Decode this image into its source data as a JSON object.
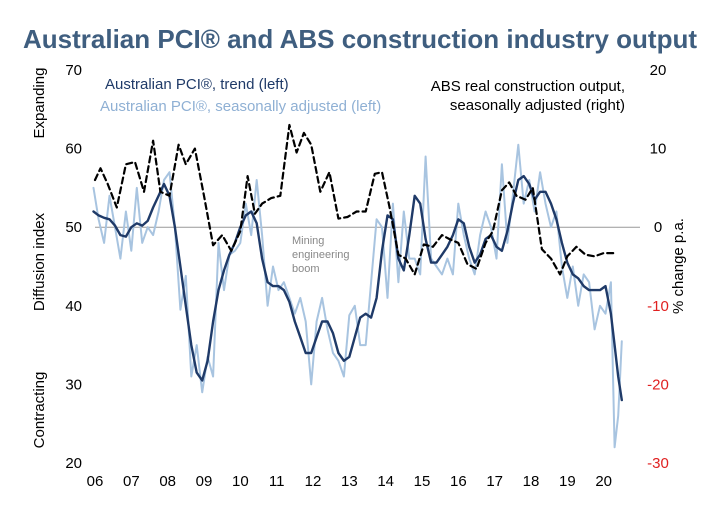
{
  "chart_data": {
    "type": "line",
    "title": "Australian PCI® and ABS construction industry output",
    "ylabel_left": "Diffusion index",
    "ylabel_right": "% change p.a.",
    "expanding_label": "Expanding",
    "contracting_label": "Contracting",
    "annotation": [
      "Mining",
      "engineering",
      "boom"
    ],
    "ylim_left": [
      20,
      70
    ],
    "ylim_right": [
      -30,
      20
    ],
    "yticks_left": [
      20,
      30,
      40,
      50,
      60,
      70
    ],
    "yticks_right": [
      -30,
      -20,
      -10,
      0,
      10,
      20
    ],
    "xlim": [
      2006,
      2021
    ],
    "xticks": [
      {
        "pos": 2006,
        "label": "06"
      },
      {
        "pos": 2007,
        "label": "07"
      },
      {
        "pos": 2008,
        "label": "08"
      },
      {
        "pos": 2009,
        "label": "09"
      },
      {
        "pos": 2010,
        "label": "10"
      },
      {
        "pos": 2011,
        "label": "11"
      },
      {
        "pos": 2012,
        "label": "12"
      },
      {
        "pos": 2013,
        "label": "13"
      },
      {
        "pos": 2014,
        "label": "14"
      },
      {
        "pos": 2015,
        "label": "15"
      },
      {
        "pos": 2016,
        "label": "16"
      },
      {
        "pos": 2017,
        "label": "17"
      },
      {
        "pos": 2018,
        "label": "18"
      },
      {
        "pos": 2019,
        "label": "19"
      },
      {
        "pos": 2020,
        "label": "20"
      }
    ],
    "series": [
      {
        "name": "Australian PCI®, seasonally adjusted (left)",
        "axis": "left",
        "color": "#A8C4E0",
        "style": "solid",
        "x": [
          2005.96,
          2006.1,
          2006.25,
          2006.4,
          2006.55,
          2006.7,
          2006.85,
          2007.0,
          2007.15,
          2007.3,
          2007.45,
          2007.6,
          2007.75,
          2007.9,
          2008.05,
          2008.2,
          2008.35,
          2008.5,
          2008.65,
          2008.8,
          2008.95,
          2009.1,
          2009.25,
          2009.4,
          2009.55,
          2009.7,
          2009.85,
          2010.0,
          2010.15,
          2010.3,
          2010.45,
          2010.6,
          2010.75,
          2010.9,
          2011.05,
          2011.2,
          2011.35,
          2011.5,
          2011.65,
          2011.8,
          2011.95,
          2012.1,
          2012.25,
          2012.4,
          2012.55,
          2012.7,
          2012.85,
          2013.0,
          2013.15,
          2013.3,
          2013.45,
          2013.6,
          2013.75,
          2013.9,
          2014.05,
          2014.2,
          2014.35,
          2014.5,
          2014.65,
          2014.8,
          2014.95,
          2015.1,
          2015.25,
          2015.4,
          2015.55,
          2015.7,
          2015.85,
          2016.0,
          2016.15,
          2016.3,
          2016.45,
          2016.6,
          2016.75,
          2016.9,
          2017.05,
          2017.2,
          2017.35,
          2017.5,
          2017.65,
          2017.8,
          2017.95,
          2018.1,
          2018.25,
          2018.4,
          2018.55,
          2018.7,
          2018.85,
          2019.0,
          2019.15,
          2019.3,
          2019.45,
          2019.6,
          2019.75,
          2019.9,
          2020.05,
          2020.2,
          2020.3,
          2020.4,
          2020.5
        ],
        "values": [
          55,
          51,
          48,
          54,
          50,
          46,
          52,
          47,
          55,
          48,
          50,
          49,
          52,
          56,
          57,
          50,
          39.5,
          43.8,
          31,
          35,
          29,
          33.5,
          31,
          48,
          42,
          46.5,
          47,
          48,
          53,
          49,
          56,
          49,
          40,
          45,
          42,
          43,
          41,
          39,
          41,
          38,
          30,
          38,
          41,
          37,
          34,
          33,
          31,
          38.8,
          40,
          35,
          35,
          43,
          51,
          50,
          41,
          53,
          43,
          52,
          46,
          46,
          44,
          59,
          46,
          45,
          44,
          46,
          44,
          53,
          49,
          46,
          44,
          49,
          52,
          50,
          46,
          58,
          48,
          54,
          60.5,
          53,
          56,
          52,
          57,
          53,
          50,
          52,
          45,
          41,
          45,
          40,
          44,
          43,
          37,
          40,
          39,
          43,
          22,
          26,
          35.5
        ]
      },
      {
        "name": "Australian PCI®, trend (left)",
        "axis": "left",
        "color": "#1F3A68",
        "style": "solid",
        "x": [
          2005.96,
          2006.1,
          2006.25,
          2006.4,
          2006.55,
          2006.7,
          2006.85,
          2007.0,
          2007.15,
          2007.3,
          2007.45,
          2007.6,
          2007.75,
          2007.9,
          2008.05,
          2008.2,
          2008.35,
          2008.5,
          2008.65,
          2008.8,
          2008.95,
          2009.1,
          2009.25,
          2009.4,
          2009.55,
          2009.7,
          2009.85,
          2010.0,
          2010.15,
          2010.3,
          2010.45,
          2010.6,
          2010.75,
          2010.9,
          2011.05,
          2011.2,
          2011.35,
          2011.5,
          2011.65,
          2011.8,
          2011.95,
          2012.1,
          2012.25,
          2012.4,
          2012.55,
          2012.7,
          2012.85,
          2013.0,
          2013.15,
          2013.3,
          2013.45,
          2013.6,
          2013.75,
          2013.9,
          2014.05,
          2014.2,
          2014.35,
          2014.5,
          2014.65,
          2014.8,
          2014.95,
          2015.1,
          2015.25,
          2015.4,
          2015.55,
          2015.7,
          2015.85,
          2016.0,
          2016.15,
          2016.3,
          2016.45,
          2016.6,
          2016.75,
          2016.9,
          2017.05,
          2017.2,
          2017.35,
          2017.5,
          2017.65,
          2017.8,
          2017.95,
          2018.1,
          2018.25,
          2018.4,
          2018.55,
          2018.7,
          2018.85,
          2019.0,
          2019.15,
          2019.3,
          2019.45,
          2019.6,
          2019.75,
          2019.9,
          2020.05,
          2020.2,
          2020.3,
          2020.4,
          2020.5
        ],
        "values": [
          52,
          51.5,
          51.2,
          51,
          50.2,
          49,
          48.8,
          50,
          50.5,
          50.2,
          50.8,
          52.5,
          54,
          55.5,
          54,
          50,
          45,
          40,
          35,
          31.5,
          30.5,
          33,
          38,
          42,
          44.5,
          46.5,
          48,
          50,
          51.5,
          52,
          50.5,
          46,
          43,
          42.5,
          42.5,
          42,
          40.5,
          38,
          36,
          34,
          34,
          36,
          38,
          38,
          36.5,
          34,
          33,
          33.5,
          36,
          38.5,
          39,
          38.5,
          41,
          47,
          51.5,
          51,
          46,
          44.5,
          49,
          54,
          53,
          48.5,
          45.5,
          45.5,
          46.5,
          47.5,
          49,
          51,
          50.5,
          47.5,
          45.5,
          46.5,
          48.5,
          49,
          47.5,
          47,
          49.5,
          53,
          56,
          56.5,
          55.5,
          53.5,
          54.5,
          54.5,
          53,
          51,
          48,
          45.5,
          44,
          43.5,
          42.5,
          42,
          42,
          42,
          42.5,
          39,
          35,
          31,
          28
        ]
      },
      {
        "name": "ABS real construction output, seasonally adjusted (right)",
        "axis": "right",
        "color": "#000000",
        "style": "dashed",
        "x": [
          2006.0,
          2006.15,
          2006.35,
          2006.6,
          2006.85,
          2007.1,
          2007.35,
          2007.6,
          2007.8,
          2008.05,
          2008.3,
          2008.5,
          2008.75,
          2009.0,
          2009.25,
          2009.5,
          2009.75,
          2010.0,
          2010.2,
          2010.4,
          2010.6,
          2010.85,
          2011.1,
          2011.35,
          2011.55,
          2011.75,
          2011.95,
          2012.2,
          2012.45,
          2012.7,
          2012.95,
          2013.2,
          2013.45,
          2013.7,
          2013.9,
          2014.1,
          2014.35,
          2014.55,
          2014.8,
          2015.05,
          2015.3,
          2015.55,
          2015.75,
          2016.0,
          2016.25,
          2016.5,
          2016.75,
          2016.95,
          2017.2,
          2017.4,
          2017.6,
          2017.85,
          2018.05,
          2018.3,
          2018.55,
          2018.8,
          2019.0,
          2019.25,
          2019.5,
          2019.75,
          2020.0,
          2020.3
        ],
        "values": [
          6,
          7.5,
          5.5,
          2.5,
          8,
          8.3,
          4.5,
          11,
          4.5,
          4,
          10.5,
          8,
          10,
          4,
          -2.3,
          -1,
          -3,
          -0.5,
          6.5,
          1.7,
          3,
          3.7,
          4,
          13,
          9.5,
          12,
          10.5,
          4.5,
          7,
          1.1,
          1.3,
          2,
          2,
          6.8,
          7,
          2.7,
          -3.5,
          -4,
          -6,
          -2.2,
          -2.5,
          -1,
          -1.5,
          -2,
          -4.7,
          -5.3,
          -2,
          -0.5,
          4.7,
          5.7,
          4,
          3.5,
          5,
          -2.8,
          -4,
          -6,
          -3.7,
          -2.5,
          -3.5,
          -3.7,
          -3.3,
          -3.3
        ]
      }
    ]
  }
}
